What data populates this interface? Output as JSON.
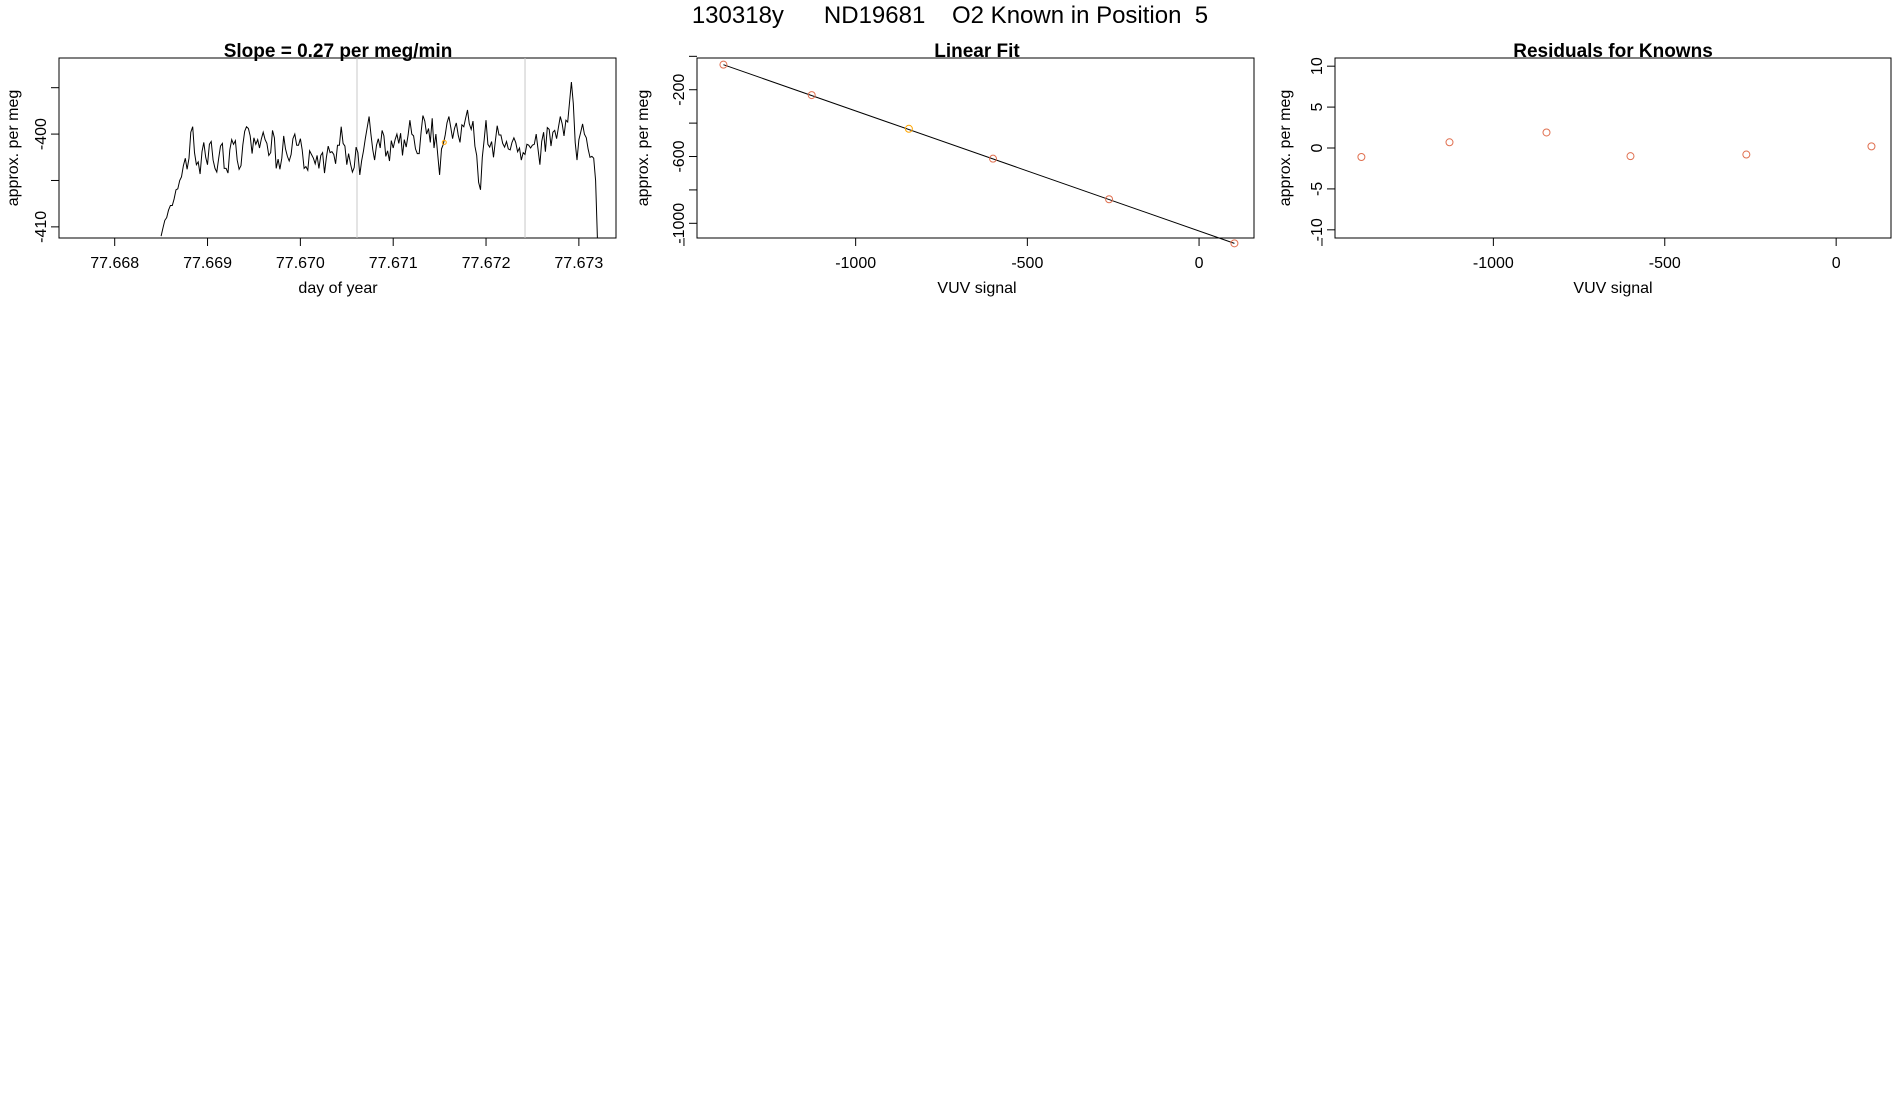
{
  "page": {
    "title": "130318y      ND19681    O2 Known in Position  5"
  },
  "colors": {
    "line": "#000000",
    "points": "#e07050",
    "highlight": "#ffa500",
    "vline": "#c8c8c8",
    "fit": "#000000"
  },
  "chart_data": [
    {
      "type": "line",
      "title": "Slope =  0.27  per meg/min",
      "xlabel": "day of year",
      "ylabel": "approx. per meg",
      "xlim": [
        77.6674,
        77.6734
      ],
      "ylim": [
        -411.2,
        -391.8
      ],
      "x_ticks": [
        "77.668",
        "77.669",
        "77.670",
        "77.671",
        "77.672",
        "77.673"
      ],
      "y_ticks": [
        {
          "value": -410,
          "label": "-410"
        },
        {
          "value": -405,
          "label": ""
        },
        {
          "value": -400,
          "label": "-400"
        },
        {
          "value": -395,
          "label": ""
        }
      ],
      "vlines": [
        77.67061,
        77.67242
      ],
      "highlight_point": {
        "x": 77.67155,
        "y": -400.9
      },
      "series_x_start": 77.6685,
      "series_dx": 2e-05,
      "series_y": [
        -411.0,
        -410.1,
        -409.3,
        -409.0,
        -408.2,
        -407.7,
        -407.7,
        -407.0,
        -406.0,
        -405.9,
        -405.0,
        -404.6,
        -403.4,
        -402.6,
        -403.8,
        -402.6,
        -399.8,
        -399.2,
        -402.0,
        -403.3,
        -403.0,
        -404.3,
        -401.9,
        -400.9,
        -402.5,
        -403.3,
        -401.1,
        -400.8,
        -402.8,
        -403.7,
        -404.1,
        -402.6,
        -401.3,
        -401.0,
        -403.7,
        -403.7,
        -404.2,
        -401.7,
        -400.6,
        -401.1,
        -400.7,
        -402.8,
        -403.8,
        -403.4,
        -401.2,
        -399.7,
        -399.2,
        -399.4,
        -400.2,
        -402.1,
        -400.4,
        -401.1,
        -400.6,
        -401.5,
        -400.5,
        -399.8,
        -400.6,
        -401.0,
        -402.3,
        -402.0,
        -399.6,
        -400.4,
        -403.7,
        -402.7,
        -403.8,
        -402.6,
        -400.2,
        -401.6,
        -402.4,
        -402.9,
        -402.2,
        -400.5,
        -400.0,
        -401.2,
        -401.2,
        -400.5,
        -401.7,
        -403.7,
        -403.5,
        -403.9,
        -401.8,
        -402.2,
        -402.6,
        -403.2,
        -402.3,
        -403.7,
        -402.3,
        -402.0,
        -404.2,
        -402.5,
        -401.3,
        -402.0,
        -401.9,
        -402.2,
        -403.2,
        -401.2,
        -401.2,
        -399.2,
        -401.0,
        -401.3,
        -403.3,
        -402.1,
        -403.2,
        -404.1,
        -403.6,
        -401.4,
        -402.0,
        -404.4,
        -402.9,
        -401.8,
        -400.5,
        -399.3,
        -398.1,
        -400.0,
        -401.7,
        -402.8,
        -401.2,
        -400.5,
        -401.5,
        -399.6,
        -400.2,
        -402.4,
        -401.8,
        -402.9,
        -400.7,
        -401.5,
        -400.6,
        -400.0,
        -401.0,
        -399.9,
        -402.3,
        -400.6,
        -401.4,
        -400.1,
        -398.5,
        -400.0,
        -400.2,
        -401.6,
        -402.1,
        -402.1,
        -399.9,
        -398.0,
        -398.6,
        -400.0,
        -399.4,
        -400.9,
        -398.3,
        -401.5,
        -400.0,
        -402.3,
        -404.4,
        -401.6,
        -401.1,
        -400.1,
        -398.8,
        -398.1,
        -399.3,
        -400.5,
        -399.4,
        -398.8,
        -400.1,
        -400.9,
        -399.0,
        -399.2,
        -398.3,
        -397.4,
        -398.9,
        -399.5,
        -398.6,
        -401.3,
        -402.3,
        -405.2,
        -406.0,
        -402.5,
        -400.6,
        -398.5,
        -401.1,
        -401.4,
        -400.8,
        -402.5,
        -400.8,
        -399.1,
        -400.1,
        -400.1,
        -401.0,
        -401.4,
        -400.8,
        -401.6,
        -401.7,
        -400.9,
        -400.4,
        -400.9,
        -401.9,
        -401.5,
        -402.8,
        -402.0,
        -402.2,
        -401.1,
        -401.2,
        -401.5,
        -401.2,
        -401.1,
        -400.0,
        -401.6,
        -403.3,
        -400.8,
        -399.8,
        -401.9,
        -399.3,
        -399.5,
        -401.3,
        -399.8,
        -399.6,
        -400.5,
        -399.3,
        -398.1,
        -398.9,
        -400.2,
        -398.5,
        -398.7,
        -396.5,
        -394.4,
        -396.7,
        -400.9,
        -402.8,
        -400.6,
        -399.8,
        -398.9,
        -400.0,
        -400.4,
        -401.6,
        -402.5,
        -402.4,
        -402.6,
        -405.0,
        -411.5
      ]
    },
    {
      "type": "scatter",
      "title": "Linear Fit",
      "xlabel": "VUV signal",
      "ylabel": "approx. per meg",
      "xlim": [
        -1462,
        160
      ],
      "ylim": [
        -1088,
        -10
      ],
      "x_ticks": [
        {
          "value": -1500,
          "label": ""
        },
        {
          "value": -1000,
          "label": "-1000"
        },
        {
          "value": -500,
          "label": "-500"
        },
        {
          "value": 0,
          "label": "0"
        }
      ],
      "y_ticks": [
        {
          "value": -1000,
          "label": "-1000"
        },
        {
          "value": -800,
          "label": ""
        },
        {
          "value": -600,
          "label": "-600"
        },
        {
          "value": -400,
          "label": ""
        },
        {
          "value": -200,
          "label": "-200"
        },
        {
          "value": 0,
          "label": ""
        }
      ],
      "x": [
        -1385,
        -1128,
        -845,
        -600,
        -262,
        103
      ],
      "y": [
        -50,
        -232,
        -434,
        -613,
        -856,
        -1120
      ],
      "highlight_index": 2,
      "fit_line": {
        "x": [
          -1385,
          103
        ],
        "y": [
          -50,
          -1120
        ]
      }
    },
    {
      "type": "scatter",
      "title": "Residuals for Knowns",
      "xlabel": "VUV signal",
      "ylabel": "approx. per meg",
      "xlim": [
        -1462,
        160
      ],
      "ylim": [
        -11,
        11
      ],
      "x_ticks": [
        {
          "value": -1500,
          "label": ""
        },
        {
          "value": -1000,
          "label": "-1000"
        },
        {
          "value": -500,
          "label": "-500"
        },
        {
          "value": 0,
          "label": "0"
        }
      ],
      "y_ticks": [
        {
          "value": -10,
          "label": "-10"
        },
        {
          "value": -5,
          "label": "-5"
        },
        {
          "value": 0,
          "label": "0"
        },
        {
          "value": 5,
          "label": "5"
        },
        {
          "value": 10,
          "label": "10"
        }
      ],
      "x": [
        -1385,
        -1128,
        -845,
        -600,
        -262,
        103
      ],
      "y": [
        -1.1,
        0.7,
        1.9,
        -1.0,
        -0.8,
        0.2
      ]
    }
  ]
}
